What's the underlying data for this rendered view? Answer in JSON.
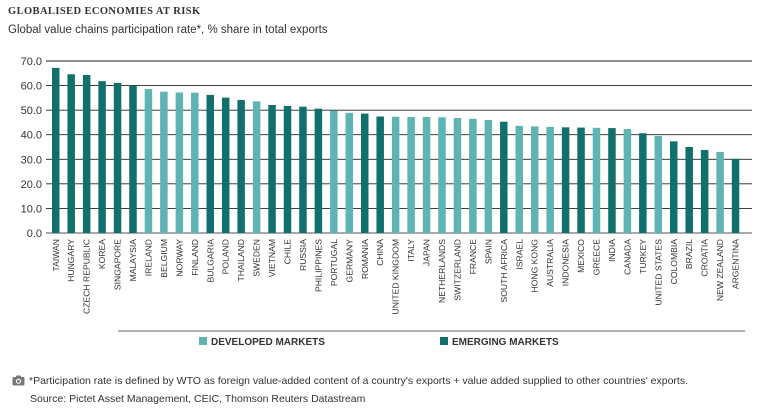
{
  "title": "GLOBALISED ECONOMIES AT RISK",
  "subtitle": "Global value chains participation rate*, % share in total exports",
  "footnote": "*Participation rate is defined by WTO as foreign value-added content of a country's exports + value added supplied to other countries' exports.",
  "source": "Source: Pictet Asset Management, CEIC, Thomson Reuters Datastream",
  "colors": {
    "developed": "#5fb3b3",
    "emerging": "#12706c"
  },
  "chart_data": {
    "type": "bar",
    "ylim": [
      0,
      70
    ],
    "yticks": [
      "0.0",
      "10.0",
      "20.0",
      "30.0",
      "40.0",
      "50.0",
      "60.0",
      "70.0"
    ],
    "grid": true,
    "legend": [
      {
        "name": "DEVELOPED MARKETS",
        "group": "developed"
      },
      {
        "name": "EMERGING MARKETS",
        "group": "emerging"
      }
    ],
    "categories": [
      "TAIWAN",
      "HUNGARY",
      "CZECH REPUBLIC",
      "KOREA",
      "SINGAPORE",
      "MALAYSIA",
      "IRELAND",
      "BELGIUM",
      "NORWAY",
      "FINLAND",
      "BULGARIA",
      "POLAND",
      "THAILAND",
      "SWEDEN",
      "VIETNAM",
      "CHILE",
      "RUSSIA",
      "PHILIPPINES",
      "PORTUGAL",
      "GERMANY",
      "ROMANIA",
      "CHINA",
      "UNITED KINGDOM",
      "ITALY",
      "JAPAN",
      "NETHERLANDS",
      "SWITZERLAND",
      "FRANCE",
      "SPAIN",
      "SOUTH AFRICA",
      "ISRAEL",
      "HONG KONG",
      "AUSTRALIA",
      "INDONESIA",
      "MEXICO",
      "GREECE",
      "INDIA",
      "CANADA",
      "TURKEY",
      "UNITED STATES",
      "COLOMBIA",
      "BRAZIL",
      "CROATIA",
      "NEW ZEALAND",
      "ARGENTINA"
    ],
    "values": [
      67.2,
      64.6,
      64.3,
      61.8,
      61.1,
      59.9,
      58.6,
      57.5,
      57.2,
      57.1,
      56.2,
      55.1,
      54.1,
      53.6,
      52.1,
      51.7,
      51.4,
      50.6,
      49.8,
      48.9,
      48.6,
      47.4,
      47.3,
      47.2,
      47.2,
      47.1,
      46.8,
      46.5,
      46.0,
      45.3,
      43.6,
      43.4,
      43.2,
      43.0,
      42.9,
      42.8,
      42.7,
      42.3,
      40.6,
      39.5,
      37.3,
      35.0,
      33.8,
      33.0,
      30.2
    ],
    "groups": [
      "emerging",
      "emerging",
      "emerging",
      "emerging",
      "emerging",
      "emerging",
      "developed",
      "developed",
      "developed",
      "developed",
      "emerging",
      "emerging",
      "emerging",
      "developed",
      "emerging",
      "emerging",
      "emerging",
      "emerging",
      "developed",
      "developed",
      "emerging",
      "emerging",
      "developed",
      "developed",
      "developed",
      "developed",
      "developed",
      "developed",
      "developed",
      "emerging",
      "developed",
      "developed",
      "developed",
      "emerging",
      "emerging",
      "developed",
      "emerging",
      "developed",
      "emerging",
      "developed",
      "emerging",
      "emerging",
      "emerging",
      "developed",
      "emerging"
    ]
  }
}
